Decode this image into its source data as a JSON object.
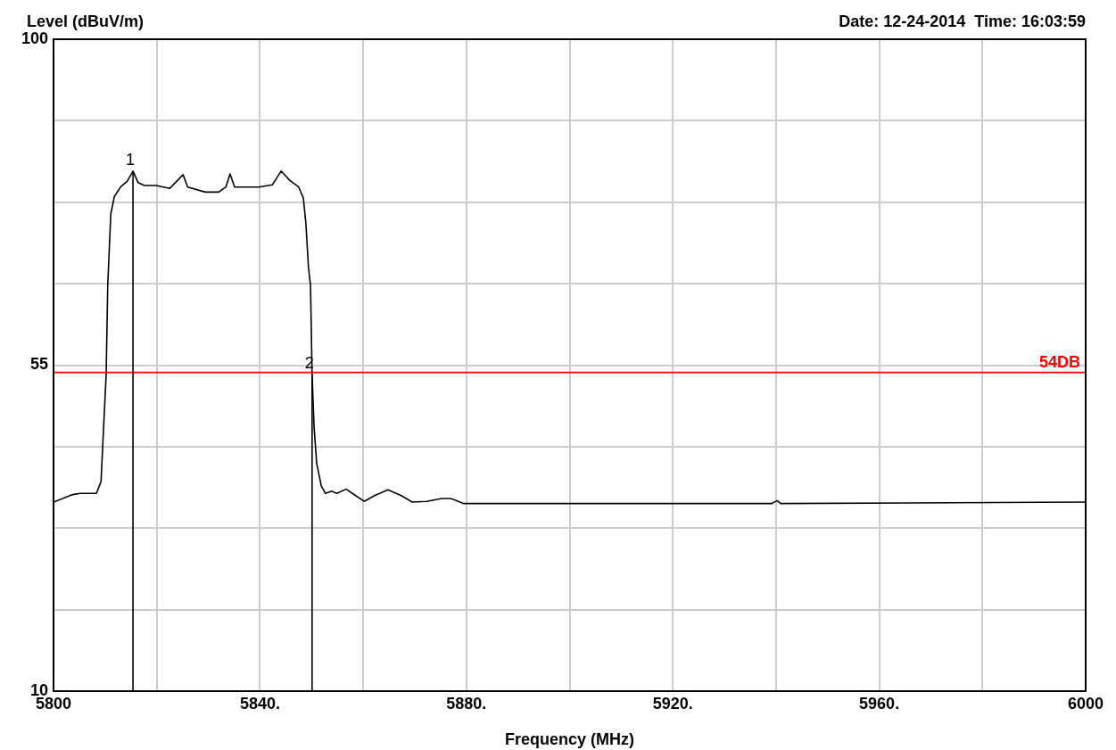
{
  "chart_data": {
    "type": "line",
    "xlabel": "Frequency (MHz)",
    "ylabel": "Level (dBuV/m)",
    "annotations": [
      "Date: 12-24-2014  Time: 16:03:59",
      {
        "text": "1",
        "x": 5815.4,
        "y": 81.8
      },
      {
        "text": "2",
        "x": 5850.1,
        "y": 53.7
      }
    ],
    "x": [
      5800,
      5803.5,
      5805.2,
      5808.3,
      5809.2,
      5809.7,
      5810.2,
      5810.5,
      5811.1,
      5811.8,
      5813,
      5814.3,
      5815.4,
      5816.4,
      5817.6,
      5819.9,
      5822.5,
      5825.1,
      5826,
      5829.4,
      5832,
      5833.4,
      5834.2,
      5835.1,
      5839.8,
      5842.4,
      5844.1,
      5845.8,
      5847.5,
      5848.4,
      5848.9,
      5849.4,
      5849.8,
      5850.1,
      5850.5,
      5851,
      5851.9,
      5852.7,
      5853.9,
      5854.9,
      5856.7,
      5857.9,
      5860.2,
      5862.2,
      5864.8,
      5867.4,
      5869.5,
      5872.3,
      5875.2,
      5877,
      5879.5,
      5939.2,
      5940.2,
      5940.9,
      6000
    ],
    "series": [
      {
        "color": "#000000",
        "values": [
          36.1,
          37.1,
          37.3,
          37.3,
          38.9,
          46.3,
          53.7,
          66,
          75.9,
          78.3,
          79.6,
          80.4,
          81.8,
          80.2,
          79.8,
          79.8,
          79.4,
          81.3,
          79.6,
          78.9,
          78.9,
          79.6,
          81.4,
          79.6,
          79.6,
          79.9,
          81.8,
          80.5,
          79.6,
          78.1,
          74.6,
          68.5,
          66,
          53.7,
          46.3,
          41.4,
          38.3,
          37.3,
          37.6,
          37.3,
          37.9,
          37.3,
          36.2,
          37,
          37.8,
          37,
          36.1,
          36.2,
          36.6,
          36.6,
          35.9,
          35.9,
          36.3,
          35.9,
          36.1
        ]
      }
    ],
    "xlim": [
      5800,
      6000
    ],
    "xticks": [
      5800,
      {
        "value": 5820,
        "label": null
      },
      {
        "value": 5840,
        "label": "5840."
      },
      {
        "value": 5860,
        "label": null
      },
      {
        "value": 5880,
        "label": "5880."
      },
      {
        "value": 5900,
        "label": null
      },
      {
        "value": 5920,
        "label": "5920."
      },
      {
        "value": 5940,
        "label": null
      },
      {
        "value": 5960,
        "label": "5960."
      },
      {
        "value": 5980,
        "label": null
      },
      6000
    ],
    "ylim": [
      10,
      100
    ],
    "yticks": [
      10,
      {
        "value": 21.25,
        "label": null
      },
      {
        "value": 32.5,
        "label": null
      },
      {
        "value": 43.75,
        "label": null
      },
      55,
      {
        "value": 66.25,
        "label": null
      },
      {
        "value": 77.5,
        "label": null
      },
      {
        "value": 88.75,
        "label": null
      },
      100
    ],
    "ref_lines": [
      {
        "axis": "y",
        "value": 54,
        "label": "54DB",
        "color": "#ff0000"
      }
    ],
    "grid": true,
    "legend": false,
    "marker": "none",
    "line_style": "solid"
  }
}
